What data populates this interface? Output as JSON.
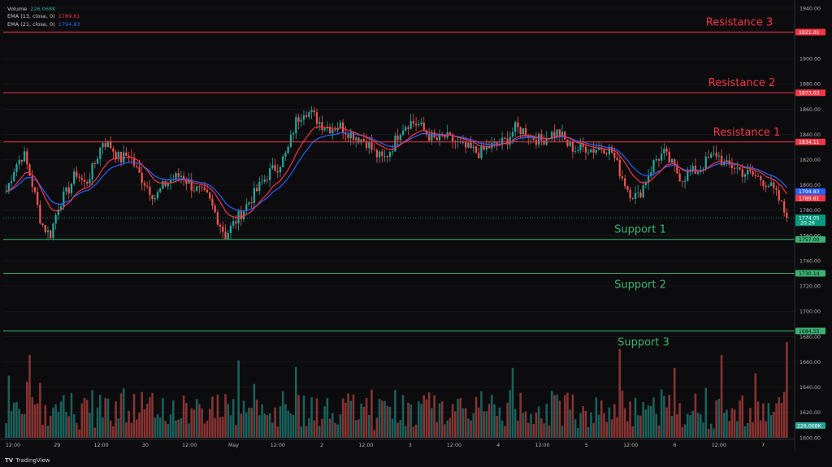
{
  "legend": {
    "volume_label": "Volume",
    "volume_value": "226.068K",
    "ema13_label": "EMA (13, close, 0)",
    "ema13_value": "1789.61",
    "ema21_label": "EMA (21, close, 0)",
    "ema21_value": "1794.83"
  },
  "branding": {
    "logo": "TV",
    "name": "TradingView"
  },
  "colors": {
    "background": "#0c0c0e",
    "up": "#26a69a",
    "down": "#ef5350",
    "ema13": "#f23645",
    "ema21": "#2962ff",
    "resistance": "#f23645",
    "support": "#3bb273",
    "last_price": "#089981"
  },
  "chart_data": {
    "type": "candlestick",
    "ylim": [
      1600,
      1940
    ],
    "y_ticks": [
      "1940.00",
      "1920.00",
      "1900.00",
      "1880.00",
      "1860.00",
      "1840.00",
      "1820.00",
      "1800.00",
      "1780.00",
      "1760.00",
      "1740.00",
      "1720.00",
      "1700.00",
      "1680.00",
      "1660.00",
      "1640.00",
      "1620.00",
      "1600.00"
    ],
    "x_labels": [
      "12:00",
      "29",
      "12:00",
      "30",
      "12:00",
      "May",
      "12:00",
      "2",
      "12:00",
      "3",
      "12:00",
      "4",
      "12:00",
      "5",
      "12:00",
      "6",
      "12:00",
      "7"
    ],
    "levels": [
      {
        "name": "Resistance 3",
        "value": 1921.01,
        "label": "1921.01",
        "kind": "resistance"
      },
      {
        "name": "Resistance 2",
        "value": 1873.03,
        "label": "1873.03",
        "kind": "resistance"
      },
      {
        "name": "Resistance 1",
        "value": 1834.11,
        "label": "1834.11",
        "kind": "resistance"
      },
      {
        "name": "Support 1",
        "value": 1757.0,
        "label": "1757.00",
        "kind": "support"
      },
      {
        "name": "Support 2",
        "value": 1730.14,
        "label": "1730.14",
        "kind": "support"
      },
      {
        "name": "Support 3",
        "value": 1684.55,
        "label": "1684.55",
        "kind": "support"
      }
    ],
    "ema13_last": {
      "value": 1789.61,
      "label": "1789.61"
    },
    "ema21_last": {
      "value": 1794.83,
      "label": "1794.83"
    },
    "last_price": {
      "value": 1774.05,
      "label": "1774.05",
      "countdown": "20:26"
    },
    "volume_last": {
      "label": "226.068K"
    },
    "price_path": [
      1795,
      1815,
      1825,
      1800,
      1770,
      1760,
      1785,
      1795,
      1810,
      1800,
      1815,
      1835,
      1830,
      1820,
      1825,
      1810,
      1800,
      1790,
      1800,
      1805,
      1808,
      1800,
      1795,
      1790,
      1775,
      1760,
      1770,
      1780,
      1790,
      1800,
      1810,
      1815,
      1825,
      1850,
      1860,
      1855,
      1848,
      1845,
      1847,
      1842,
      1838,
      1835,
      1825,
      1820,
      1830,
      1845,
      1850,
      1848,
      1840,
      1835,
      1838,
      1835,
      1830,
      1828,
      1825,
      1830,
      1832,
      1835,
      1845,
      1843,
      1838,
      1835,
      1840,
      1842,
      1832,
      1828,
      1830,
      1828,
      1830,
      1827,
      1810,
      1795,
      1790,
      1805,
      1820,
      1825,
      1815,
      1805,
      1810,
      1812,
      1820,
      1825,
      1815,
      1815,
      1810,
      1808,
      1805,
      1800,
      1790,
      1774
    ]
  }
}
